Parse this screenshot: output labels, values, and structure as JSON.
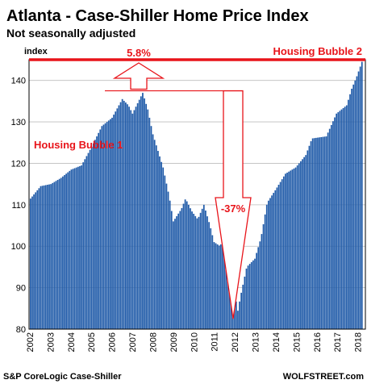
{
  "chart_data": {
    "type": "bar",
    "title": "Atlanta - Case-Shiller Home Price Index",
    "subtitle": "Not seasonally adjusted",
    "ylabel": "index",
    "ylim": [
      80,
      145
    ],
    "yticks": [
      80,
      90,
      100,
      110,
      120,
      130,
      140
    ],
    "xtick_labels": [
      "2002",
      "2003",
      "2004",
      "2005",
      "2006",
      "2007",
      "2008",
      "2009",
      "2010",
      "2011",
      "2012",
      "2013",
      "2014",
      "2015",
      "2016",
      "2017",
      "2018"
    ],
    "grid": true,
    "bar_color": "#1f5aa8",
    "x_start": 2002.0,
    "x_end": 2018.25,
    "anchors": [
      [
        2002.0,
        111.5
      ],
      [
        2002.5,
        114.5
      ],
      [
        2003.0,
        115.0
      ],
      [
        2003.5,
        116.5
      ],
      [
        2004.0,
        118.5
      ],
      [
        2004.5,
        119.5
      ],
      [
        2005.0,
        124.0
      ],
      [
        2005.5,
        129.0
      ],
      [
        2006.0,
        131.0
      ],
      [
        2006.5,
        135.5
      ],
      [
        2006.8,
        134.0
      ],
      [
        2007.0,
        132.0
      ],
      [
        2007.3,
        135.0
      ],
      [
        2007.5,
        137.0
      ],
      [
        2007.75,
        133.0
      ],
      [
        2008.0,
        127.0
      ],
      [
        2008.5,
        119.0
      ],
      [
        2008.8,
        112.0
      ],
      [
        2009.0,
        106.0
      ],
      [
        2009.4,
        109.0
      ],
      [
        2009.6,
        111.5
      ],
      [
        2009.9,
        108.5
      ],
      [
        2010.2,
        106.5
      ],
      [
        2010.5,
        110.0
      ],
      [
        2010.8,
        105.0
      ],
      [
        2011.0,
        101.0
      ],
      [
        2011.3,
        100.0
      ],
      [
        2011.6,
        104.0
      ],
      [
        2011.8,
        99.0
      ],
      [
        2012.0,
        90.0
      ],
      [
        2012.15,
        84.0
      ],
      [
        2012.3,
        88.0
      ],
      [
        2012.6,
        95.0
      ],
      [
        2013.0,
        97.0
      ],
      [
        2013.3,
        102.0
      ],
      [
        2013.6,
        110.5
      ],
      [
        2014.0,
        113.5
      ],
      [
        2014.5,
        117.5
      ],
      [
        2015.0,
        119.0
      ],
      [
        2015.5,
        122.0
      ],
      [
        2015.8,
        126.0
      ],
      [
        2016.5,
        126.5
      ],
      [
        2017.0,
        132.0
      ],
      [
        2017.5,
        134.0
      ],
      [
        2017.75,
        138.0
      ],
      [
        2018.0,
        141.0
      ],
      [
        2018.25,
        144.5
      ]
    ],
    "annotations": {
      "pct_up": "5.8%",
      "pct_down": "-37%",
      "bubble1": "Housing Bubble 1",
      "bubble2": "Housing Bubble 2",
      "bubble2_level": 145,
      "peak_level": 137.5,
      "trough_level": 82.5,
      "color": "#e8141a"
    },
    "source": "S&P CoreLogic Case-Shiller",
    "brand": "WOLFSTREET.com"
  }
}
